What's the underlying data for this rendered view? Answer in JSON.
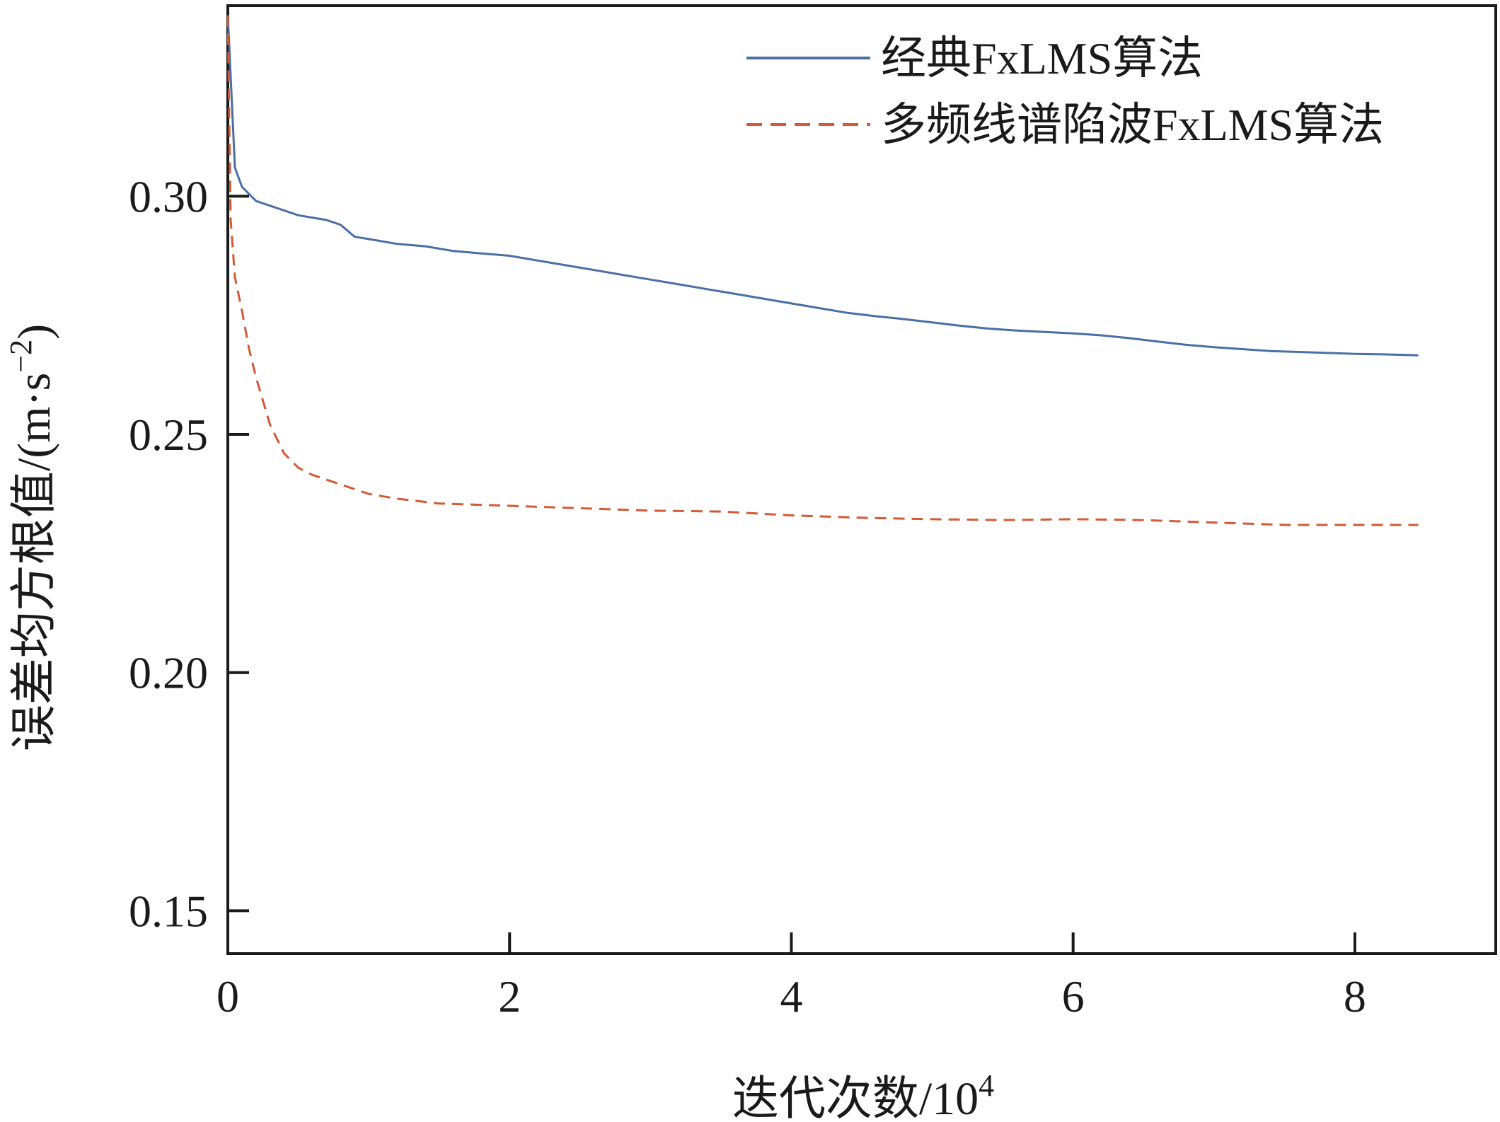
{
  "chart_data": {
    "type": "line",
    "title": "",
    "xlabel": "迭代次数/10",
    "xlabel_sup": "4",
    "ylabel": "误差均方根值/(m·s",
    "ylabel_sup": "−2",
    "ylabel_close": ")",
    "xlim": [
      0,
      9
    ],
    "ylim": [
      0.141,
      0.34
    ],
    "xticks": [
      0,
      2,
      4,
      6,
      8
    ],
    "xtick_labels": [
      "0",
      "2",
      "4",
      "6",
      "8"
    ],
    "yticks": [
      0.15,
      0.2,
      0.25,
      0.3
    ],
    "ytick_labels": [
      "0.15",
      "0.20",
      "0.25",
      "0.30"
    ],
    "grid": false,
    "legend_position": "top-right",
    "series": [
      {
        "name": "经典FxLMS算法",
        "color": "#4a6fa5",
        "line_style": "solid",
        "x": [
          0.0,
          0.05,
          0.1,
          0.2,
          0.3,
          0.4,
          0.5,
          0.6,
          0.7,
          0.8,
          0.9,
          1.0,
          1.2,
          1.4,
          1.6,
          1.8,
          2.0,
          2.2,
          2.4,
          2.6,
          2.8,
          3.0,
          3.2,
          3.4,
          3.6,
          3.8,
          4.0,
          4.2,
          4.4,
          4.6,
          4.8,
          5.0,
          5.2,
          5.4,
          5.6,
          5.8,
          6.0,
          6.2,
          6.4,
          6.6,
          6.8,
          7.0,
          7.2,
          7.4,
          7.6,
          7.8,
          8.0,
          8.2,
          8.45
        ],
        "y": [
          0.338,
          0.306,
          0.302,
          0.299,
          0.298,
          0.297,
          0.296,
          0.2955,
          0.295,
          0.294,
          0.2915,
          0.291,
          0.29,
          0.2895,
          0.2885,
          0.288,
          0.2875,
          0.2865,
          0.2855,
          0.2845,
          0.2835,
          0.2825,
          0.2815,
          0.2805,
          0.2795,
          0.2785,
          0.2775,
          0.2765,
          0.2755,
          0.2748,
          0.2742,
          0.2735,
          0.2728,
          0.2722,
          0.2718,
          0.2715,
          0.2712,
          0.2708,
          0.2702,
          0.2695,
          0.2688,
          0.2683,
          0.2679,
          0.2675,
          0.2673,
          0.2671,
          0.2669,
          0.2668,
          0.2666
        ]
      },
      {
        "name": "多频线谱陷波FxLMS算法",
        "color": "#d35a35",
        "line_style": "dashed",
        "x": [
          0.0,
          0.02,
          0.05,
          0.1,
          0.15,
          0.2,
          0.3,
          0.4,
          0.5,
          0.6,
          0.8,
          1.0,
          1.2,
          1.5,
          2.0,
          2.5,
          3.0,
          3.5,
          4.0,
          4.5,
          5.0,
          5.5,
          6.0,
          6.5,
          7.0,
          7.5,
          8.0,
          8.45
        ],
        "y": [
          0.338,
          0.295,
          0.283,
          0.276,
          0.268,
          0.262,
          0.252,
          0.246,
          0.243,
          0.2415,
          0.2395,
          0.2375,
          0.2365,
          0.2355,
          0.235,
          0.2345,
          0.234,
          0.2338,
          0.233,
          0.2325,
          0.2322,
          0.232,
          0.2322,
          0.232,
          0.2315,
          0.231,
          0.231,
          0.231
        ]
      }
    ]
  }
}
